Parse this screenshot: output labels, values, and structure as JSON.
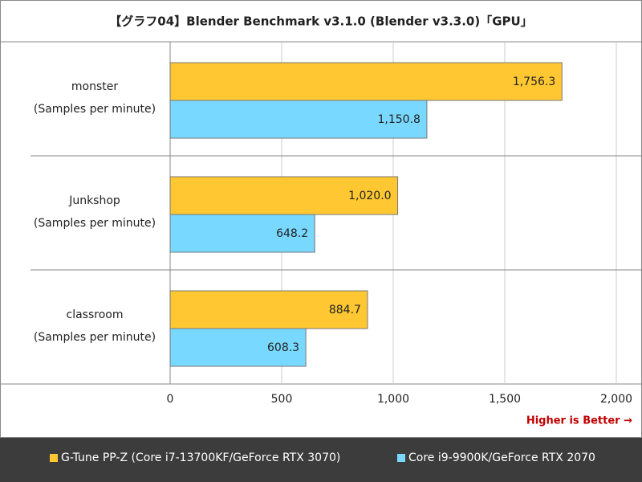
{
  "chart_data": {
    "type": "hbar",
    "title": "【グラフ04】Blender Benchmark v3.1.0 (Blender v3.3.0)「GPU」",
    "categories": [
      "monster",
      "Junkshop",
      "classroom"
    ],
    "category_unit": "(Samples per minute)",
    "annotation": "Higher is Better →",
    "series": [
      {
        "name": "G-Tune PP-Z (Core i7-13700KF/GeForce RTX 3070)",
        "color": "#ffc832",
        "values": [
          1756.3,
          1020.0,
          884.7
        ],
        "value_labels": [
          "1,756.3",
          "1,020.0",
          "884.7"
        ]
      },
      {
        "name": "Core i9-9900K/GeForce RTX 2070",
        "color": "#78d8ff",
        "values": [
          1150.8,
          648.2,
          608.3
        ],
        "value_labels": [
          "1,150.8",
          "648.2",
          "608.3"
        ]
      }
    ],
    "xlim": [
      0,
      2000
    ],
    "xticks": [
      0,
      500,
      {
        "value": 1000,
        "label": "1,000"
      },
      {
        "value": 1500,
        "label": "1,500"
      },
      {
        "value": 2000,
        "label": "2,000"
      }
    ],
    "grid": true
  }
}
